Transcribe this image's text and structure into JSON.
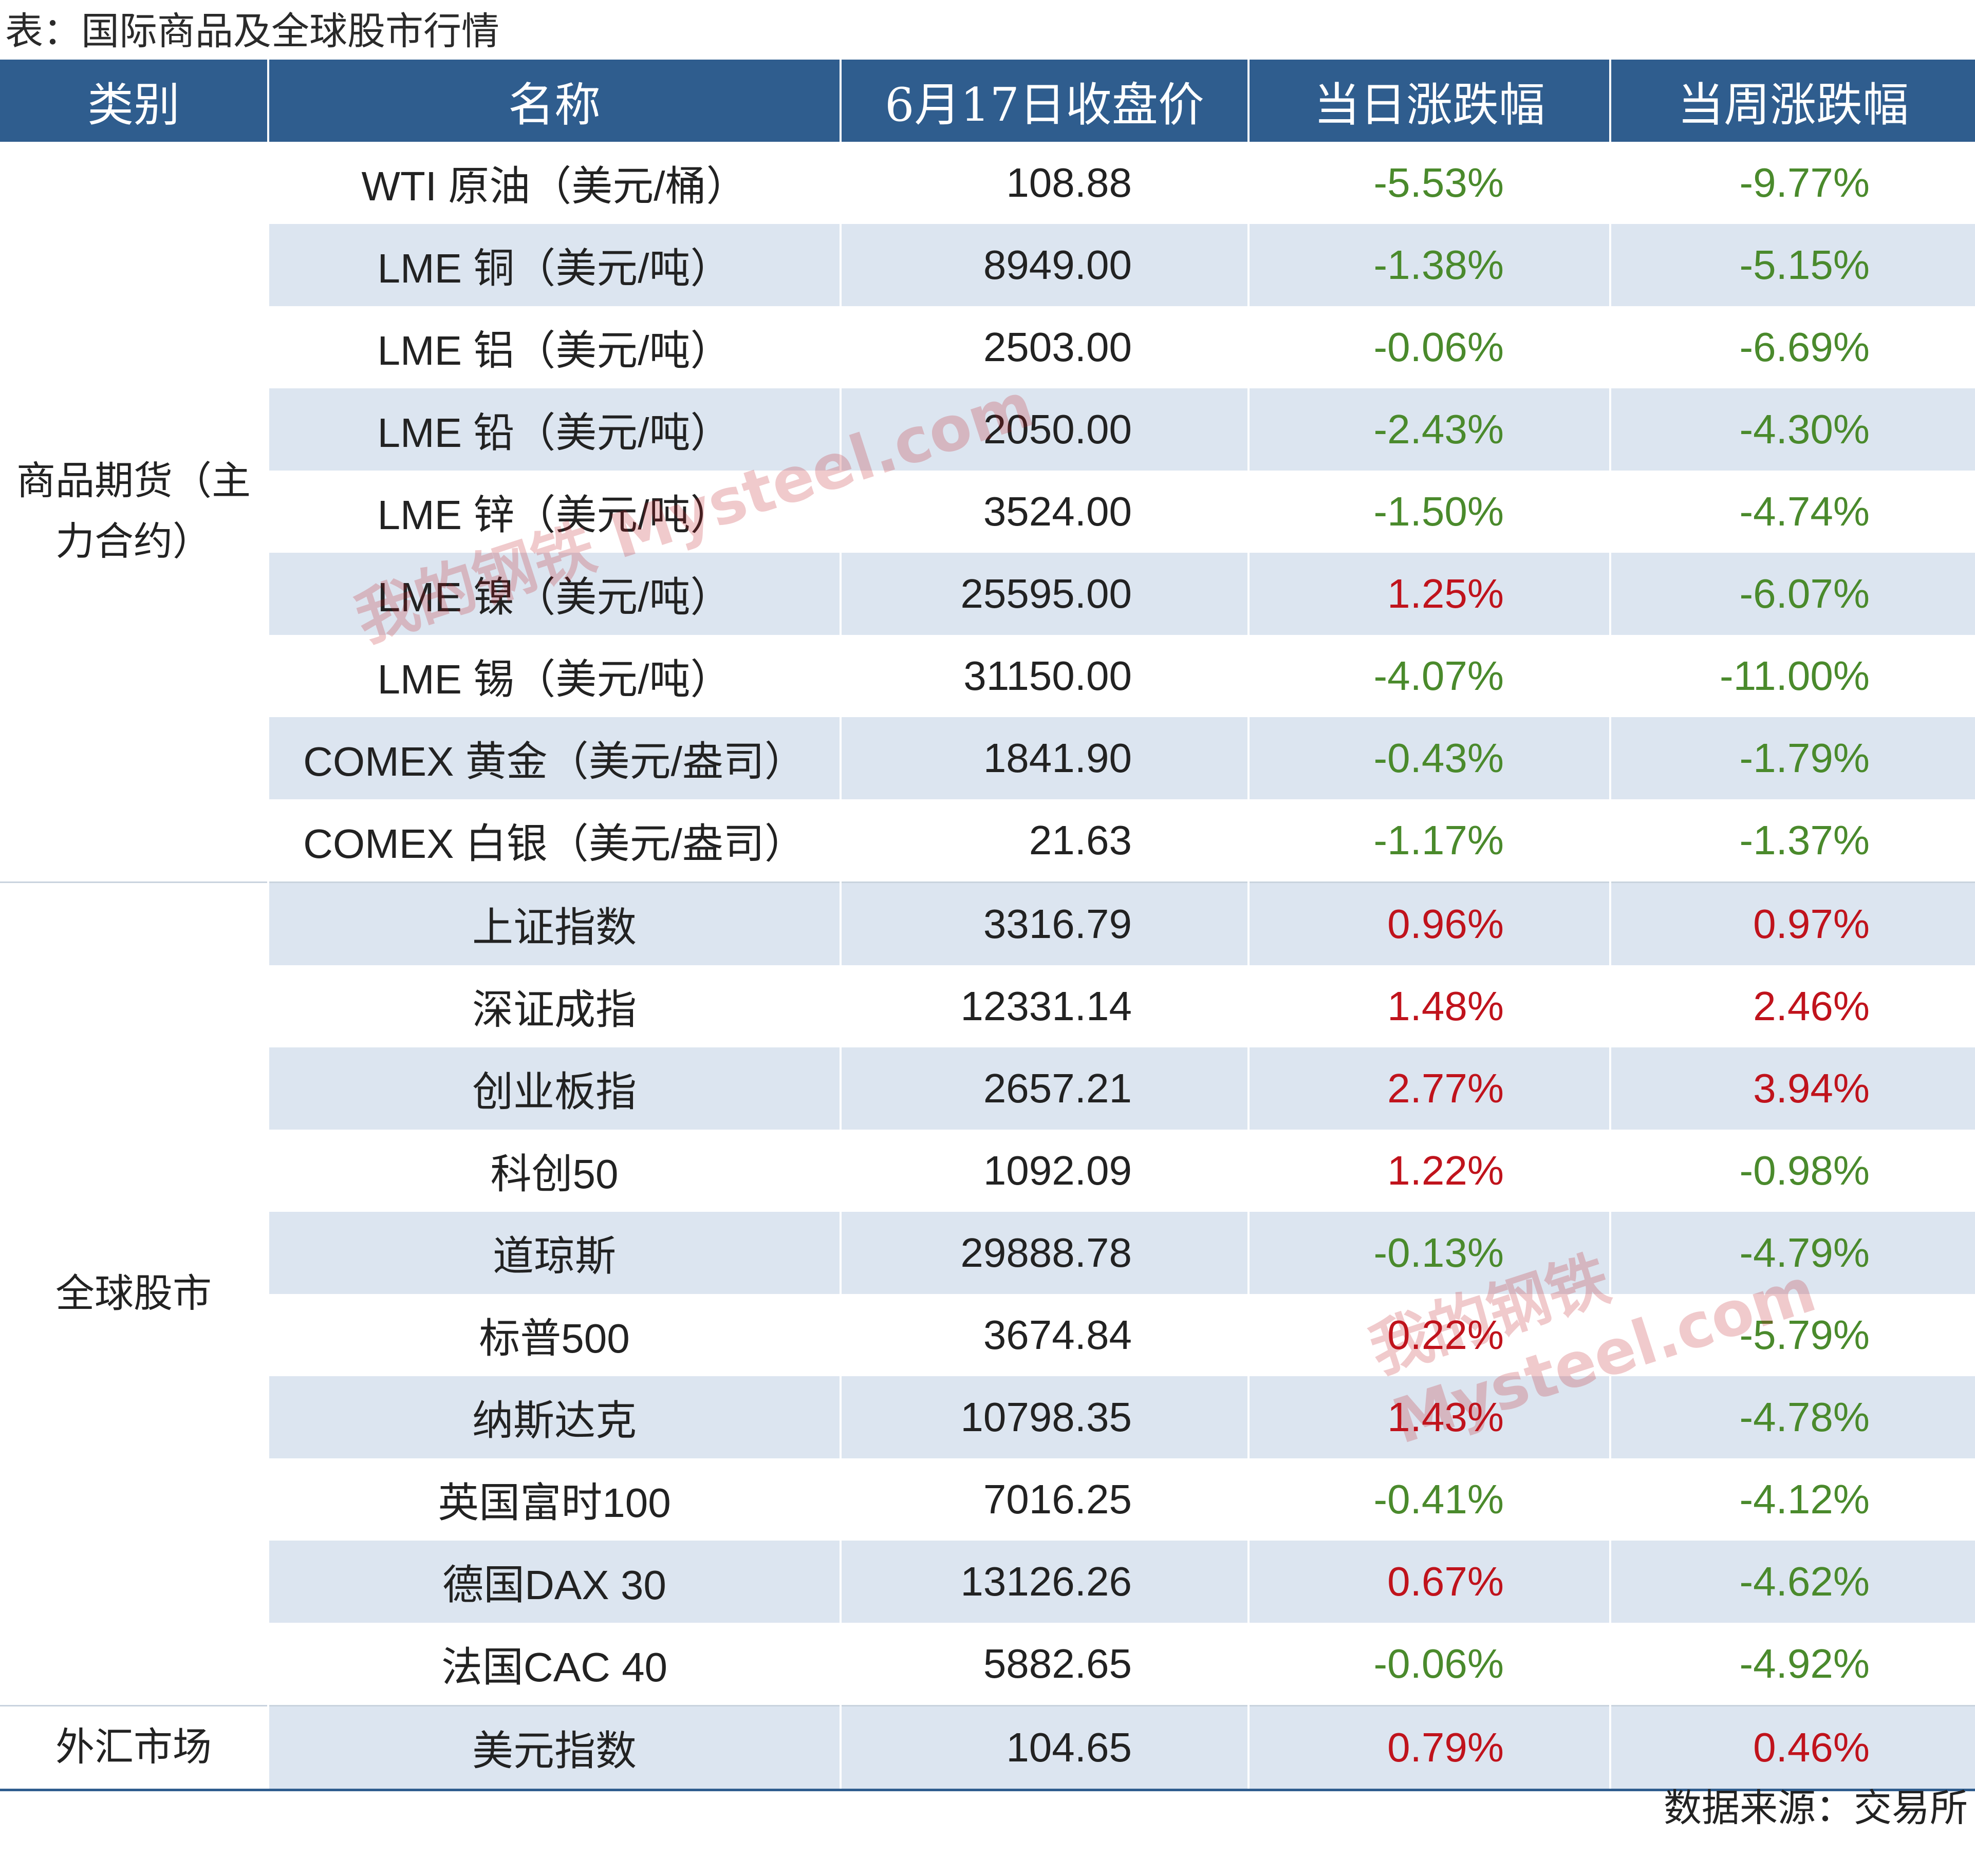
{
  "caption": "表：国际商品及全球股市行情",
  "headers": [
    "类别",
    "名称",
    "6月17日收盘价",
    "当日涨跌幅",
    "当周涨跌幅"
  ],
  "groups": [
    {
      "category": "商品期货（主力合约）",
      "rows": [
        {
          "name": "WTI 原油（美元/桶）",
          "price": "108.88",
          "daily": "-5.53%",
          "weekly": "-9.77%"
        },
        {
          "name": "LME 铜（美元/吨）",
          "price": "8949.00",
          "daily": "-1.38%",
          "weekly": "-5.15%"
        },
        {
          "name": "LME 铝（美元/吨）",
          "price": "2503.00",
          "daily": "-0.06%",
          "weekly": "-6.69%"
        },
        {
          "name": "LME 铅（美元/吨）",
          "price": "2050.00",
          "daily": "-2.43%",
          "weekly": "-4.30%"
        },
        {
          "name": "LME 锌（美元/吨）",
          "price": "3524.00",
          "daily": "-1.50%",
          "weekly": "-4.74%"
        },
        {
          "name": "LME 镍（美元/吨）",
          "price": "25595.00",
          "daily": "1.25%",
          "weekly": "-6.07%"
        },
        {
          "name": "LME 锡（美元/吨）",
          "price": "31150.00",
          "daily": "-4.07%",
          "weekly": "-11.00%"
        },
        {
          "name": "COMEX 黄金（美元/盎司）",
          "price": "1841.90",
          "daily": "-0.43%",
          "weekly": "-1.79%"
        },
        {
          "name": "COMEX 白银（美元/盎司）",
          "price": "21.63",
          "daily": "-1.17%",
          "weekly": "-1.37%"
        }
      ]
    },
    {
      "category": "全球股市",
      "rows": [
        {
          "name": "上证指数",
          "price": "3316.79",
          "daily": "0.96%",
          "weekly": "0.97%"
        },
        {
          "name": "深证成指",
          "price": "12331.14",
          "daily": "1.48%",
          "weekly": "2.46%"
        },
        {
          "name": "创业板指",
          "price": "2657.21",
          "daily": "2.77%",
          "weekly": "3.94%"
        },
        {
          "name": "科创50",
          "price": "1092.09",
          "daily": "1.22%",
          "weekly": "-0.98%"
        },
        {
          "name": "道琼斯",
          "price": "29888.78",
          "daily": "-0.13%",
          "weekly": "-4.79%"
        },
        {
          "name": "标普500",
          "price": "3674.84",
          "daily": "0.22%",
          "weekly": "-5.79%"
        },
        {
          "name": "纳斯达克",
          "price": "10798.35",
          "daily": "1.43%",
          "weekly": "-4.78%"
        },
        {
          "name": "英国富时100",
          "price": "7016.25",
          "daily": "-0.41%",
          "weekly": "-4.12%"
        },
        {
          "name": "德国DAX 30",
          "price": "13126.26",
          "daily": "0.67%",
          "weekly": "-4.62%"
        },
        {
          "name": "法国CAC 40",
          "price": "5882.65",
          "daily": "-0.06%",
          "weekly": "-4.92%"
        }
      ]
    },
    {
      "category": "外汇市场",
      "rows": [
        {
          "name": "美元指数",
          "price": "104.65",
          "daily": "0.79%",
          "weekly": "0.46%"
        }
      ]
    }
  ],
  "source": "数据来源：交易所",
  "watermarks": [
    "我的钢铁 Mysteel.com",
    "我的钢铁 Mysteel.com"
  ],
  "colors": {
    "header_bg": "#2f5d8e",
    "stripe": "#dce5f0",
    "positive": "#c0131c",
    "negative": "#4a8a2c"
  }
}
